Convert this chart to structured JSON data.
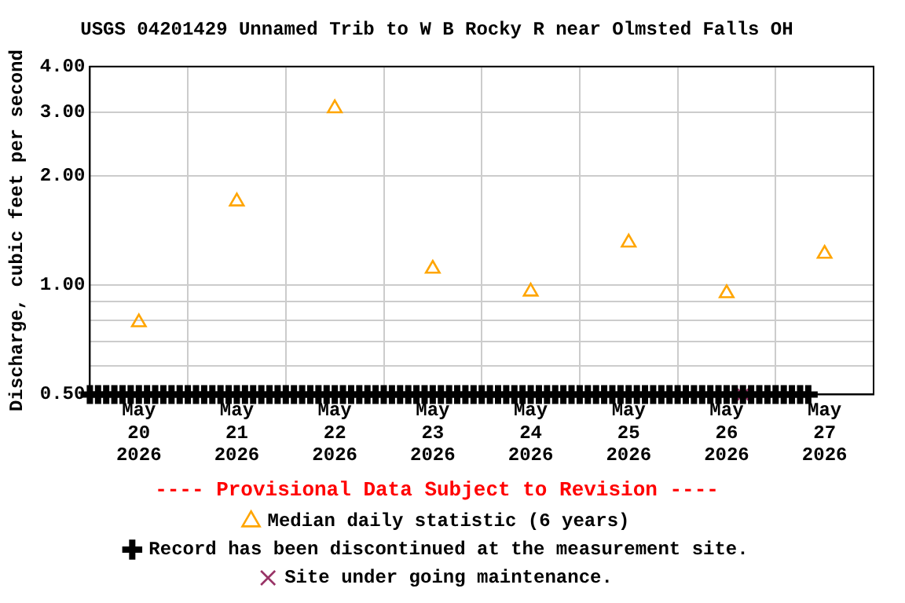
{
  "chart_data": {
    "type": "scatter",
    "title": "USGS 04201429 Unnamed Trib to W B Rocky R near Olmsted Falls OH",
    "ylabel": "Discharge, cubic feet per second",
    "annotations": [
      "---- Provisional Data Subject to Revision ----"
    ],
    "log": "y",
    "grid": true,
    "legend": "bottom",
    "xlim": [
      "2026-05-20",
      "2026-05-28"
    ],
    "xticks": [
      {
        "value": "2026-05-20T12:00",
        "label": "May\n20\n2026"
      },
      {
        "value": "2026-05-21",
        "label": null
      },
      {
        "value": "2026-05-21T12:00",
        "label": "May\n21\n2026"
      },
      {
        "value": "2026-05-22",
        "label": null
      },
      {
        "value": "2026-05-22T12:00",
        "label": "May\n22\n2026"
      },
      {
        "value": "2026-05-23",
        "label": null
      },
      {
        "value": "2026-05-23T12:00",
        "label": "May\n23\n2026"
      },
      {
        "value": "2026-05-24",
        "label": null
      },
      {
        "value": "2026-05-24T12:00",
        "label": "May\n24\n2026"
      },
      {
        "value": "2026-05-25",
        "label": null
      },
      {
        "value": "2026-05-25T12:00",
        "label": "May\n25\n2026"
      },
      {
        "value": "2026-05-26",
        "label": null
      },
      {
        "value": "2026-05-26T12:00",
        "label": "May\n26\n2026"
      },
      {
        "value": "2026-05-27",
        "label": null
      },
      {
        "value": "2026-05-27T12:00",
        "label": "May\n27\n2026"
      }
    ],
    "ylim": [
      0.5,
      4.0
    ],
    "yticks": [
      {
        "value": 0.5,
        "label": "0.50"
      },
      {
        "value": 0.6,
        "label": null
      },
      {
        "value": 0.7,
        "label": null
      },
      {
        "value": 0.8,
        "label": null
      },
      {
        "value": 0.9,
        "label": null
      },
      {
        "value": 1.0,
        "label": "1.00"
      },
      {
        "value": 2.0,
        "label": "2.00"
      },
      {
        "value": 3.0,
        "label": "3.00"
      },
      {
        "value": 4.0,
        "label": "4.00"
      }
    ],
    "series": [
      {
        "name": "Median daily statistic (6 years)",
        "color": "#ffa500",
        "marker": "triangle",
        "x": [
          "2026-05-20T12:00",
          "2026-05-21T12:00",
          "2026-05-22T12:00",
          "2026-05-23T12:00",
          "2026-05-24T12:00",
          "2026-05-25T12:00",
          "2026-05-26T12:00",
          "2026-05-27T12:00"
        ],
        "values": [
          0.79,
          1.7,
          3.07,
          1.11,
          0.96,
          1.31,
          0.95,
          1.22
        ]
      },
      {
        "name": "Record has been discontinued at the measurement site.",
        "color": "#000000",
        "marker": "cross",
        "x": [
          "2026-05-20T00:00",
          "2026-05-20T02:00",
          "2026-05-20T04:00",
          "2026-05-20T06:00",
          "2026-05-20T08:00",
          "2026-05-20T10:00",
          "2026-05-20T12:00",
          "2026-05-20T14:00",
          "2026-05-20T16:00",
          "2026-05-20T18:00",
          "2026-05-20T20:00",
          "2026-05-20T22:00",
          "2026-05-21T00:00",
          "2026-05-21T02:00",
          "2026-05-21T04:00",
          "2026-05-21T06:00",
          "2026-05-21T08:00",
          "2026-05-21T10:00",
          "2026-05-21T12:00",
          "2026-05-21T14:00",
          "2026-05-21T16:00",
          "2026-05-21T18:00",
          "2026-05-21T20:00",
          "2026-05-21T22:00",
          "2026-05-22T00:00",
          "2026-05-22T02:00",
          "2026-05-22T04:00",
          "2026-05-22T06:00",
          "2026-05-22T08:00",
          "2026-05-22T10:00",
          "2026-05-22T12:00",
          "2026-05-22T14:00",
          "2026-05-22T16:00",
          "2026-05-22T18:00",
          "2026-05-22T20:00",
          "2026-05-22T22:00",
          "2026-05-23T00:00",
          "2026-05-23T02:00",
          "2026-05-23T04:00",
          "2026-05-23T06:00",
          "2026-05-23T08:00",
          "2026-05-23T10:00",
          "2026-05-23T12:00",
          "2026-05-23T14:00",
          "2026-05-23T16:00",
          "2026-05-23T18:00",
          "2026-05-23T20:00",
          "2026-05-23T22:00",
          "2026-05-24T00:00",
          "2026-05-24T02:00",
          "2026-05-24T04:00",
          "2026-05-24T06:00",
          "2026-05-24T08:00",
          "2026-05-24T10:00",
          "2026-05-24T12:00",
          "2026-05-24T14:00",
          "2026-05-24T16:00",
          "2026-05-24T18:00",
          "2026-05-24T20:00",
          "2026-05-24T22:00",
          "2026-05-25T00:00",
          "2026-05-25T02:00",
          "2026-05-25T04:00",
          "2026-05-25T06:00",
          "2026-05-25T08:00",
          "2026-05-25T10:00",
          "2026-05-25T12:00",
          "2026-05-25T14:00",
          "2026-05-25T16:00",
          "2026-05-25T18:00",
          "2026-05-25T20:00",
          "2026-05-25T22:00",
          "2026-05-26T00:00",
          "2026-05-26T02:00",
          "2026-05-26T04:00",
          "2026-05-26T06:00",
          "2026-05-26T08:00",
          "2026-05-26T10:00",
          "2026-05-26T12:00",
          "2026-05-26T14:00",
          "2026-05-26T16:00",
          "2026-05-26T18:00",
          "2026-05-26T20:00",
          "2026-05-26T22:00",
          "2026-05-27T00:00",
          "2026-05-27T02:00",
          "2026-05-27T04:00",
          "2026-05-27T06:00",
          "2026-05-27T08:00"
        ],
        "values": [
          0.5,
          0.5,
          0.5,
          0.5,
          0.5,
          0.5,
          0.5,
          0.5,
          0.5,
          0.5,
          0.5,
          0.5,
          0.5,
          0.5,
          0.5,
          0.5,
          0.5,
          0.5,
          0.5,
          0.5,
          0.5,
          0.5,
          0.5,
          0.5,
          0.5,
          0.5,
          0.5,
          0.5,
          0.5,
          0.5,
          0.5,
          0.5,
          0.5,
          0.5,
          0.5,
          0.5,
          0.5,
          0.5,
          0.5,
          0.5,
          0.5,
          0.5,
          0.5,
          0.5,
          0.5,
          0.5,
          0.5,
          0.5,
          0.5,
          0.5,
          0.5,
          0.5,
          0.5,
          0.5,
          0.5,
          0.5,
          0.5,
          0.5,
          0.5,
          0.5,
          0.5,
          0.5,
          0.5,
          0.5,
          0.5,
          0.5,
          0.5,
          0.5,
          0.5,
          0.5,
          0.5,
          0.5,
          0.5,
          0.5,
          0.5,
          0.5,
          0.5,
          0.5,
          0.5,
          0.5,
          0.5,
          0.5,
          0.5,
          0.5,
          0.5,
          0.5,
          0.5,
          0.5,
          0.5
        ]
      },
      {
        "name": "Site under going maintenance.",
        "color": "#993366",
        "marker": "x",
        "x": [
          "2026-05-26T16:00"
        ],
        "values": [
          0.5
        ]
      }
    ]
  }
}
